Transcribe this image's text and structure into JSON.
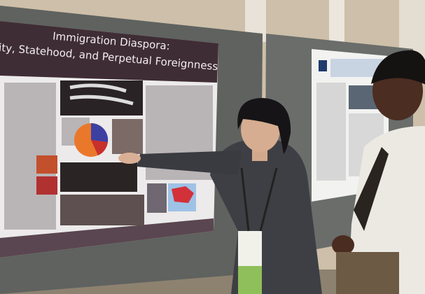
{
  "poster": {
    "title_line_1": "Immigration Diaspora:",
    "title_line_2": "ntity, Statehood, and Perpetual Foreignness"
  }
}
